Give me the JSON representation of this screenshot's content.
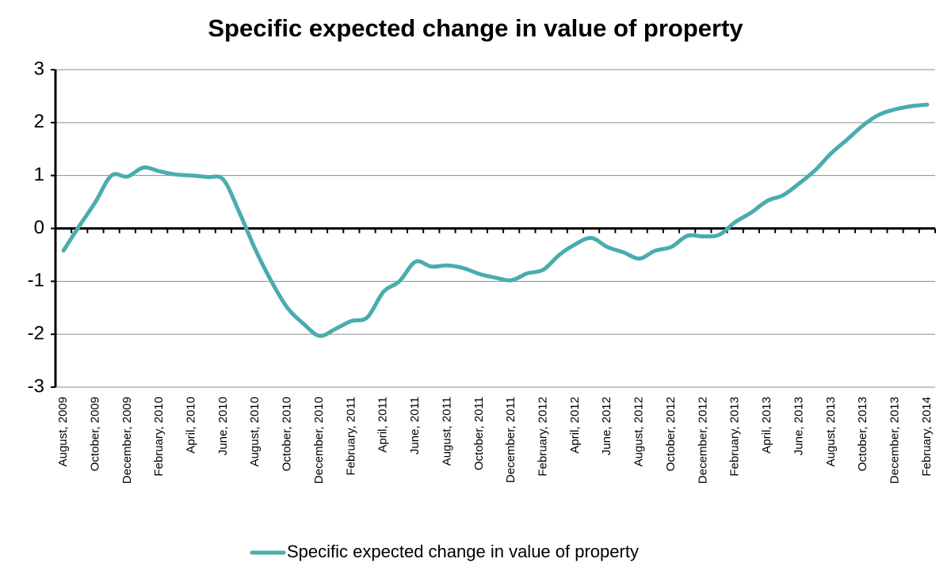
{
  "chart_data": {
    "type": "line",
    "title": "Specific expected change in value of property",
    "categories": [
      "August, 2009",
      null,
      "October, 2009",
      null,
      "December, 2009",
      null,
      "February, 2010",
      null,
      "April, 2010",
      null,
      "June, 2010",
      null,
      "August, 2010",
      null,
      "October, 2010",
      null,
      "December, 2010",
      null,
      "February, 2011",
      null,
      "April, 2011",
      null,
      "June, 2011",
      null,
      "August, 2011",
      null,
      "October, 2011",
      null,
      "December, 2011",
      null,
      "February, 2012",
      null,
      "April, 2012",
      null,
      "June, 2012",
      null,
      "August, 2012",
      null,
      "October, 2012",
      null,
      "December, 2012",
      null,
      "February, 2013",
      null,
      "April, 2013",
      null,
      "June, 2013",
      null,
      "August, 2013",
      null,
      "October, 2013",
      null,
      "December, 2013",
      null,
      "February, 2014"
    ],
    "series": [
      {
        "name": "Specific expected change in value of property",
        "color": "#4aacad",
        "values": [
          -0.42,
          0.05,
          0.5,
          1.0,
          0.98,
          1.15,
          1.08,
          1.02,
          1.0,
          0.97,
          0.92,
          0.3,
          -0.4,
          -1.0,
          -1.5,
          -1.8,
          -2.03,
          -1.9,
          -1.75,
          -1.68,
          -1.2,
          -1.0,
          -0.63,
          -0.72,
          -0.7,
          -0.75,
          -0.86,
          -0.93,
          -0.98,
          -0.85,
          -0.78,
          -0.5,
          -0.3,
          -0.18,
          -0.35,
          -0.45,
          -0.57,
          -0.42,
          -0.35,
          -0.14,
          -0.15,
          -0.12,
          0.12,
          0.3,
          0.52,
          0.63,
          0.85,
          1.1,
          1.42,
          1.68,
          1.95,
          2.15,
          2.25,
          2.31,
          2.34
        ]
      }
    ],
    "ylim": [
      -3,
      3
    ],
    "yticks": [
      -3,
      -2,
      -1,
      0,
      1,
      2,
      3
    ],
    "grid": true,
    "legend": "bottom"
  }
}
